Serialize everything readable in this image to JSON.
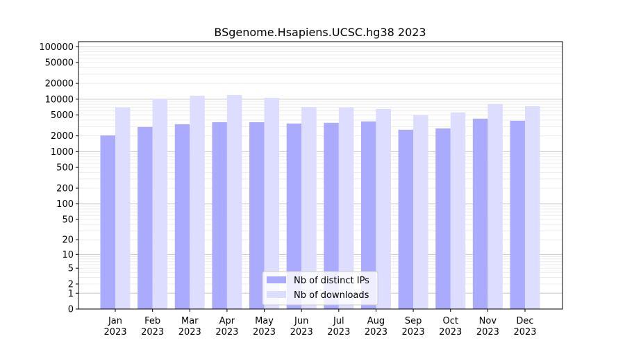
{
  "chart_data": {
    "type": "bar",
    "title": "BSgenome.Hsapiens.UCSC.hg38 2023",
    "xlabel": "",
    "ylabel": "",
    "yscale": "log10(1+y)",
    "ylim": [
      0,
      125000
    ],
    "yticks": [
      0,
      1,
      2,
      5,
      10,
      20,
      50,
      100,
      200,
      500,
      1000,
      2000,
      5000,
      10000,
      20000,
      50000,
      100000
    ],
    "grid": true,
    "legend_position": "bottom-center",
    "categories": [
      "Jan\n2023",
      "Feb\n2023",
      "Mar\n2023",
      "Apr\n2023",
      "May\n2023",
      "Jun\n2023",
      "Jul\n2023",
      "Aug\n2023",
      "Sep\n2023",
      "Oct\n2023",
      "Nov\n2023",
      "Dec\n2023"
    ],
    "series": [
      {
        "name": "Nb of distinct IPs",
        "color": "#aaaaff",
        "values": [
          2040,
          2950,
          3335,
          3655,
          3650,
          3440,
          3545,
          3770,
          2615,
          2780,
          4260,
          3885
        ]
      },
      {
        "name": "Nb of downloads",
        "color": "#ddddff",
        "values": [
          6935,
          10200,
          11650,
          12000,
          10600,
          7150,
          6935,
          6530,
          4960,
          5600,
          8080,
          7375
        ]
      }
    ]
  }
}
